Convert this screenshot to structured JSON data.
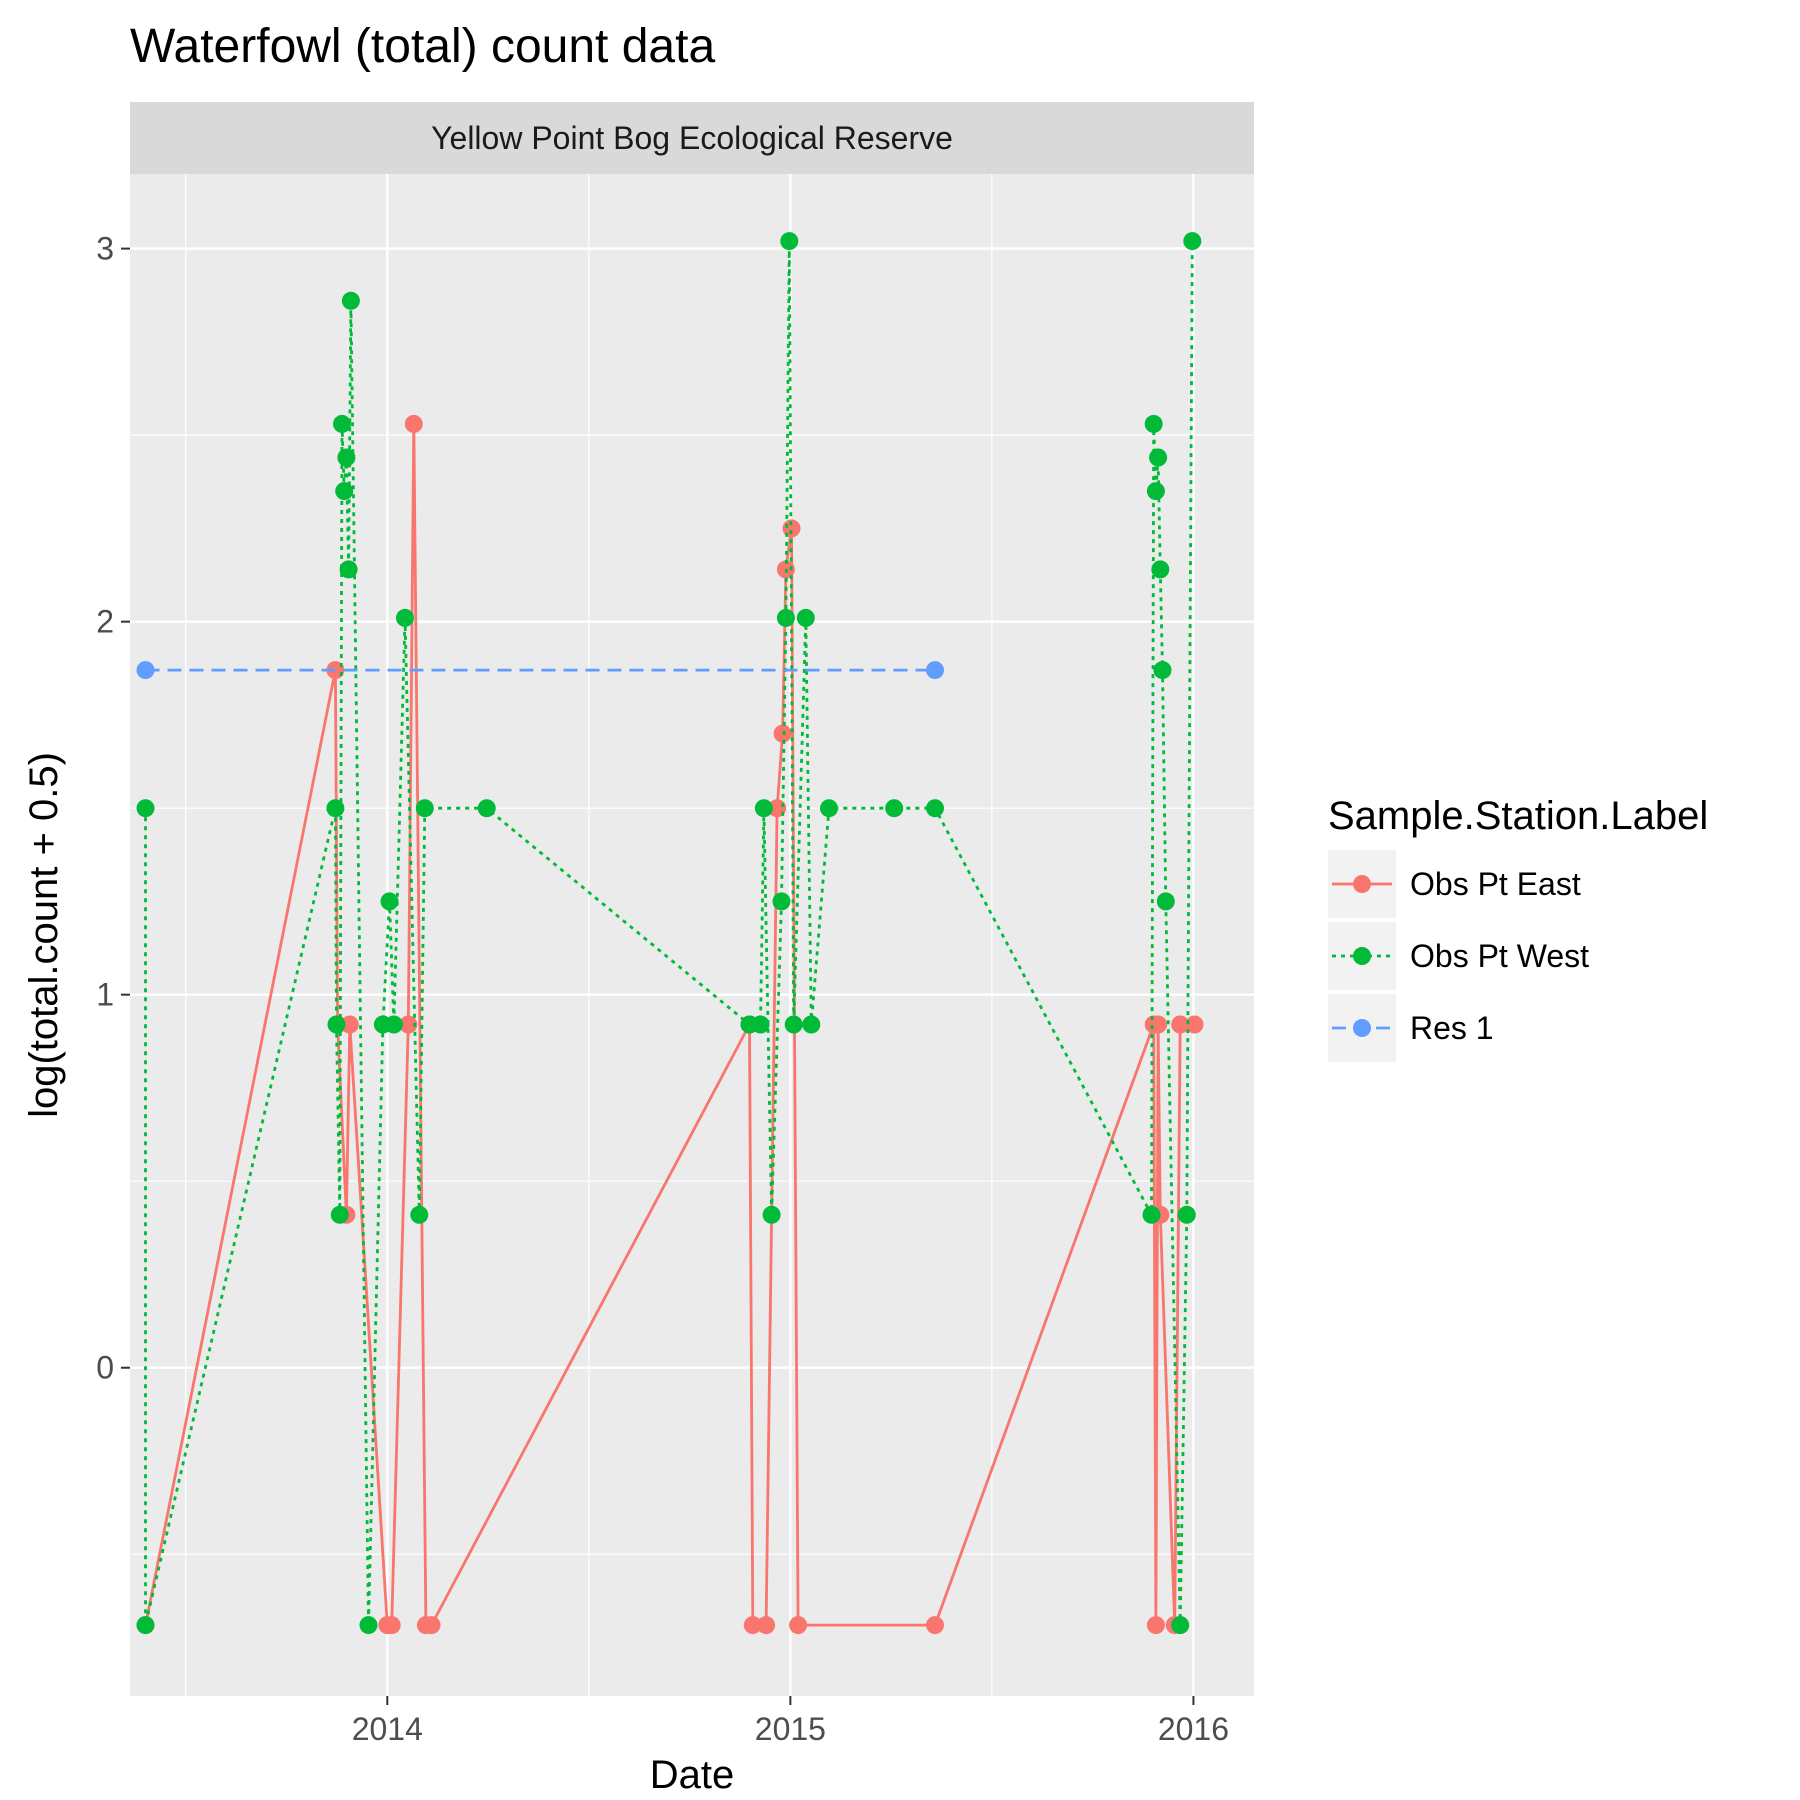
{
  "chart_data": {
    "type": "line",
    "title": "Waterfowl (total) count data",
    "facet_label": "Yellow Point Bog Ecological Reserve",
    "xlabel": "Date",
    "ylabel": "log(total.count + 0.5)",
    "x_ticks": [
      "2014",
      "2015",
      "2016"
    ],
    "y_ticks": [
      "0",
      "1",
      "2",
      "3"
    ],
    "legend_title": "Sample.Station.Label",
    "legend_position": "right",
    "grid": true,
    "xlim": [
      "2013-05-13",
      "2016-02-25"
    ],
    "ylim": [
      -0.88,
      3.2
    ],
    "series": [
      {
        "name": "Obs Pt East",
        "color": "#F8766D",
        "line_style": "solid",
        "points": [
          [
            "2013-05-27",
            -0.69
          ],
          [
            "2013-11-15",
            1.87
          ],
          [
            "2013-11-17",
            0.92
          ],
          [
            "2013-11-25",
            0.41
          ],
          [
            "2013-11-28",
            0.92
          ],
          [
            "2014-01-01",
            -0.69
          ],
          [
            "2014-01-05",
            -0.69
          ],
          [
            "2014-01-20",
            0.92
          ],
          [
            "2014-01-25",
            2.53
          ],
          [
            "2014-02-05",
            -0.69
          ],
          [
            "2014-02-10",
            -0.69
          ],
          [
            "2014-11-25",
            0.92
          ],
          [
            "2014-11-28",
            -0.69
          ],
          [
            "2014-12-10",
            -0.69
          ],
          [
            "2014-12-20",
            1.5
          ],
          [
            "2014-12-25",
            1.7
          ],
          [
            "2014-12-28",
            2.14
          ],
          [
            "2015-01-02",
            2.25
          ],
          [
            "2015-01-08",
            -0.69
          ],
          [
            "2015-05-12",
            -0.69
          ],
          [
            "2015-11-26",
            0.92
          ],
          [
            "2015-11-28",
            -0.69
          ],
          [
            "2015-11-30",
            0.92
          ],
          [
            "2015-12-02",
            0.41
          ],
          [
            "2015-12-15",
            -0.69
          ],
          [
            "2015-12-20",
            0.92
          ],
          [
            "2016-01-02",
            0.92
          ]
        ]
      },
      {
        "name": "Obs Pt West",
        "color": "#00BA38",
        "line_style": "dotted",
        "points": [
          [
            "2013-05-27",
            1.5
          ],
          [
            "2013-05-27",
            -0.69
          ],
          [
            "2013-11-15",
            1.5
          ],
          [
            "2013-11-16",
            0.92
          ],
          [
            "2013-11-19",
            0.41
          ],
          [
            "2013-11-21",
            2.53
          ],
          [
            "2013-11-23",
            2.35
          ],
          [
            "2013-11-25",
            2.44
          ],
          [
            "2013-11-27",
            2.14
          ],
          [
            "2013-11-29",
            2.86
          ],
          [
            "2013-12-15",
            -0.69
          ],
          [
            "2013-12-28",
            0.92
          ],
          [
            "2014-01-03",
            1.25
          ],
          [
            "2014-01-07",
            0.92
          ],
          [
            "2014-01-17",
            2.01
          ],
          [
            "2014-01-30",
            0.41
          ],
          [
            "2014-02-04",
            1.5
          ],
          [
            "2014-04-01",
            1.5
          ],
          [
            "2014-11-25",
            0.92
          ],
          [
            "2014-12-05",
            0.92
          ],
          [
            "2014-12-08",
            1.5
          ],
          [
            "2014-12-15",
            0.41
          ],
          [
            "2014-12-24",
            1.25
          ],
          [
            "2014-12-28",
            2.01
          ],
          [
            "2014-12-31",
            3.02
          ],
          [
            "2015-01-04",
            0.92
          ],
          [
            "2015-01-15",
            2.01
          ],
          [
            "2015-01-20",
            0.92
          ],
          [
            "2015-02-05",
            1.5
          ],
          [
            "2015-04-05",
            1.5
          ],
          [
            "2015-05-12",
            1.5
          ],
          [
            "2015-11-24",
            0.41
          ],
          [
            "2015-11-26",
            2.53
          ],
          [
            "2015-11-28",
            2.35
          ],
          [
            "2015-11-30",
            2.44
          ],
          [
            "2015-12-02",
            2.14
          ],
          [
            "2015-12-04",
            1.87
          ],
          [
            "2015-12-07",
            1.25
          ],
          [
            "2015-12-20",
            -0.69
          ],
          [
            "2015-12-26",
            0.41
          ],
          [
            "2015-12-31",
            3.02
          ]
        ]
      },
      {
        "name": "Res 1",
        "color": "#619CFF",
        "line_style": "dashed",
        "points": [
          [
            "2013-05-27",
            1.87
          ],
          [
            "2015-05-12",
            1.87
          ]
        ]
      }
    ]
  }
}
